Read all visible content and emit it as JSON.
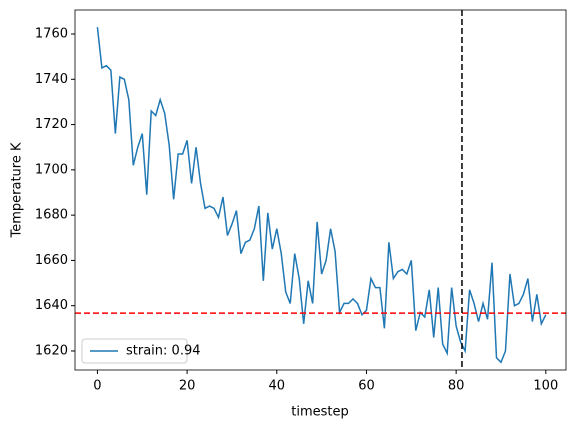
{
  "chart_data": {
    "type": "line",
    "x_label": "timestep",
    "y_label": "Temperature K",
    "x": [
      0,
      1,
      2,
      3,
      4,
      5,
      6,
      7,
      8,
      9,
      10,
      11,
      12,
      13,
      14,
      15,
      16,
      17,
      18,
      19,
      20,
      21,
      22,
      23,
      24,
      25,
      26,
      27,
      28,
      29,
      30,
      31,
      32,
      33,
      34,
      35,
      36,
      37,
      38,
      39,
      40,
      41,
      42,
      43,
      44,
      45,
      46,
      47,
      48,
      49,
      50,
      51,
      52,
      53,
      54,
      55,
      56,
      57,
      58,
      59,
      60,
      61,
      62,
      63,
      64,
      65,
      66,
      67,
      68,
      69,
      70,
      71,
      72,
      73,
      74,
      75,
      76,
      77,
      78,
      79,
      80,
      81,
      82,
      83,
      84,
      85,
      86,
      87,
      88,
      89,
      90,
      91,
      92,
      93,
      94,
      95,
      96,
      97,
      98,
      99,
      100
    ],
    "series": [
      {
        "name": "strain: 0.94",
        "color": "#1f77b4",
        "values": [
          1763,
          1745,
          1746,
          1744,
          1716,
          1741,
          1740,
          1731,
          1702,
          1710,
          1716,
          1689,
          1726,
          1724,
          1731,
          1725,
          1711,
          1687,
          1707,
          1707,
          1713,
          1694,
          1710,
          1694,
          1683,
          1684,
          1683,
          1679,
          1688,
          1671,
          1676,
          1682,
          1663,
          1668,
          1669,
          1674,
          1684,
          1651,
          1681,
          1665,
          1674,
          1663,
          1646,
          1641,
          1663,
          1652,
          1632,
          1651,
          1641,
          1677,
          1654,
          1660,
          1674,
          1664,
          1637,
          1641,
          1641,
          1643,
          1641,
          1636,
          1638,
          1652,
          1648,
          1648,
          1630,
          1668,
          1652,
          1655,
          1656,
          1654,
          1660,
          1629,
          1637,
          1635,
          1647,
          1626,
          1648,
          1623,
          1619,
          1648,
          1631,
          1624,
          1620,
          1647,
          1641,
          1633,
          1641,
          1634,
          1659,
          1617,
          1615,
          1620,
          1654,
          1640,
          1641,
          1645,
          1652,
          1633,
          1645,
          1632,
          1636
        ]
      }
    ],
    "reference_lines": [
      {
        "axis": "y",
        "value": 1636.7,
        "color": "#ff0000"
      },
      {
        "axis": "x",
        "value": 81.3,
        "color": "#000000"
      }
    ],
    "xlim": [
      -5,
      104.5
    ],
    "ylim": [
      1611.6,
      1770.6
    ],
    "xticks": [
      0,
      20,
      40,
      60,
      80,
      100
    ],
    "yticks": [
      1620,
      1640,
      1660,
      1680,
      1700,
      1720,
      1740,
      1760
    ],
    "legend": "lower left",
    "grid": false
  }
}
